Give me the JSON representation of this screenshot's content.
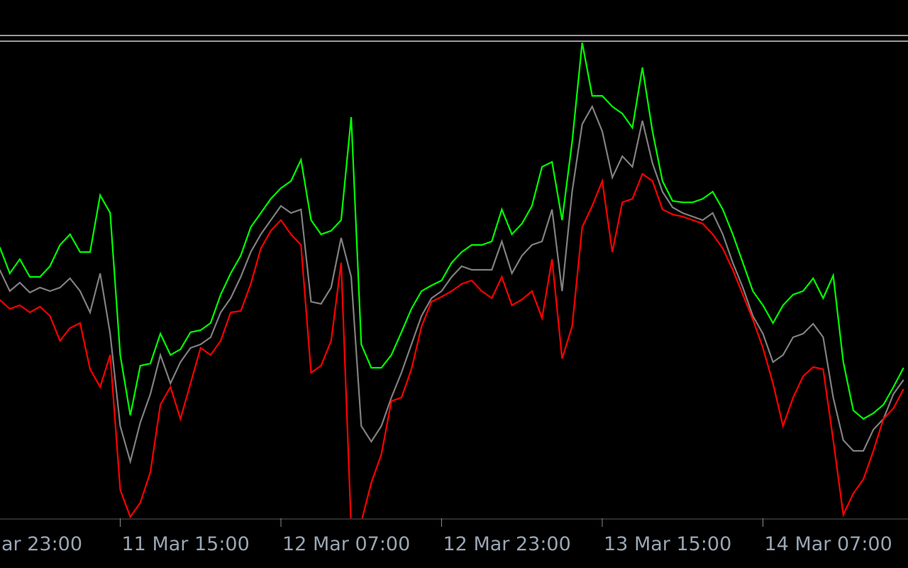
{
  "chart_data": {
    "type": "line",
    "categories": [
      "ar 23:00",
      null,
      null,
      null,
      null,
      null,
      null,
      null,
      null,
      null,
      null,
      null,
      null,
      null,
      null,
      null,
      "11 Mar 15:00",
      null,
      null,
      null,
      null,
      null,
      null,
      null,
      null,
      null,
      null,
      null,
      null,
      null,
      null,
      null,
      "12 Mar 07:00",
      null,
      null,
      null,
      null,
      null,
      null,
      null,
      null,
      null,
      null,
      null,
      null,
      null,
      null,
      null,
      "12 Mar 23:00",
      null,
      null,
      null,
      null,
      null,
      null,
      null,
      null,
      null,
      null,
      null,
      null,
      null,
      null,
      null,
      "13 Mar 15:00",
      null,
      null,
      null,
      null,
      null,
      null,
      null,
      null,
      null,
      null,
      null,
      null,
      null,
      null,
      null,
      "14 Mar 07:00",
      null,
      null,
      null,
      null,
      null,
      null,
      null,
      null,
      null,
      null,
      null,
      null,
      null,
      null
    ],
    "ylim": [
      0,
      670
    ],
    "series": [
      {
        "color": "#00ff00",
        "values": [
          null,
          null,
          null,
          null,
          382,
          345,
          365,
          340,
          340,
          355,
          385,
          400,
          375,
          375,
          455,
          430,
          230,
          145,
          215,
          218,
          260,
          230,
          238,
          262,
          265,
          275,
          315,
          345,
          370,
          410,
          430,
          450,
          465,
          475,
          505,
          420,
          400,
          405,
          420,
          565,
          245,
          212,
          212,
          230,
          262,
          295,
          320,
          328,
          335,
          360,
          375,
          385,
          385,
          390,
          435,
          400,
          415,
          440,
          495,
          502,
          420,
          530,
          670,
          595,
          595,
          580,
          570,
          550,
          635,
          545,
          475,
          447,
          445,
          445,
          450,
          460,
          435,
          400,
          360,
          320,
          300,
          275,
          300,
          315,
          320,
          338,
          310,
          342,
          220,
          152,
          140,
          148,
          160,
          185,
          212
        ]
      },
      {
        "color": "#808080",
        "values": [
          null,
          null,
          null,
          null,
          350,
          320,
          332,
          318,
          325,
          320,
          325,
          338,
          320,
          290,
          345,
          260,
          130,
          80,
          135,
          175,
          230,
          190,
          220,
          240,
          245,
          255,
          290,
          310,
          340,
          375,
          400,
          420,
          440,
          430,
          435,
          305,
          302,
          325,
          395,
          340,
          130,
          108,
          130,
          170,
          205,
          245,
          285,
          310,
          320,
          340,
          355,
          350,
          350,
          350,
          390,
          345,
          370,
          385,
          390,
          435,
          320,
          460,
          555,
          580,
          545,
          480,
          510,
          495,
          560,
          500,
          460,
          438,
          430,
          425,
          420,
          430,
          400,
          360,
          325,
          285,
          260,
          220,
          230,
          255,
          260,
          274,
          255,
          170,
          110,
          95,
          95,
          125,
          140,
          175,
          195
        ]
      },
      {
        "color": "#ff0000",
        "values": [
          null,
          null,
          null,
          null,
          308,
          295,
          300,
          290,
          298,
          285,
          250,
          268,
          275,
          210,
          185,
          230,
          40,
          2,
          22,
          65,
          160,
          185,
          140,
          190,
          240,
          230,
          250,
          290,
          292,
          330,
          380,
          405,
          420,
          400,
          385,
          205,
          215,
          250,
          360,
          -15,
          -5,
          50,
          90,
          165,
          170,
          210,
          270,
          305,
          312,
          320,
          330,
          335,
          320,
          310,
          340,
          300,
          308,
          320,
          282,
          365,
          225,
          270,
          410,
          440,
          475,
          375,
          445,
          450,
          485,
          475,
          435,
          428,
          425,
          420,
          415,
          400,
          380,
          350,
          315,
          280,
          240,
          190,
          130,
          170,
          200,
          213,
          210,
          110,
          5,
          35,
          55,
          95,
          140,
          155,
          182
        ]
      }
    ]
  }
}
